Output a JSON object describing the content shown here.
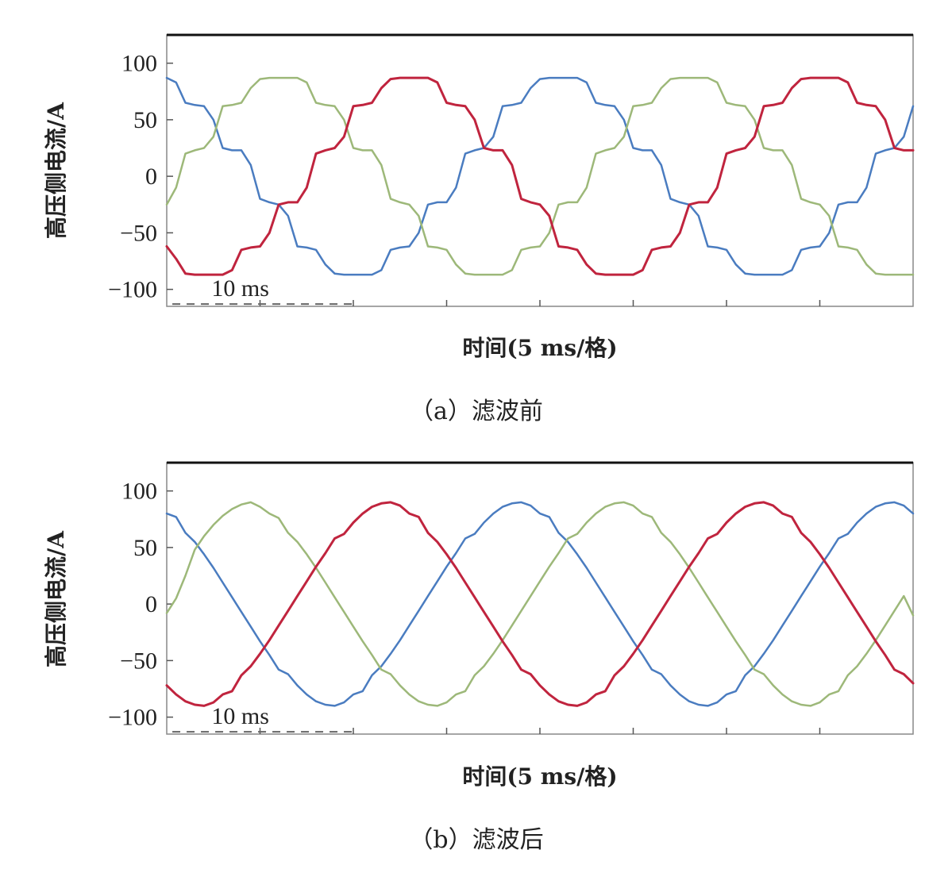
{
  "chart_data": [
    {
      "type": "line",
      "title": "",
      "caption": "（a）滤波前",
      "xlabel": "时间(5 ms/格)",
      "ylabel": "高压侧电流/A",
      "ylim": [
        -115,
        125
      ],
      "yticks": [
        100,
        50,
        0,
        -50,
        -100
      ],
      "yticklabels": [
        "100",
        "50",
        "0",
        "−50",
        "−100"
      ],
      "xlim": [
        0,
        40
      ],
      "xtick_step_ms": 5,
      "scale_bar_label": "10 ms",
      "grid": false,
      "series": [
        {
          "color": "#4a7cc0",
          "x": [
            0,
            0.5,
            1,
            1.5,
            2,
            2.5,
            3,
            3.5,
            4,
            4.5,
            5,
            5.5,
            6,
            6.5,
            7,
            7.5,
            8,
            8.5,
            9,
            9.5,
            10,
            10.5,
            11,
            11.5,
            12,
            12.5,
            13,
            13.5,
            14,
            14.5,
            15,
            15.5,
            16,
            16.5,
            17,
            17.5,
            18,
            18.5,
            19,
            19.5,
            20,
            20.5,
            21,
            21.5,
            22,
            22.5,
            23,
            23.5,
            24,
            24.5,
            25,
            25.5,
            26,
            26.5,
            27,
            27.5,
            28,
            28.5,
            29,
            29.5,
            30,
            30.5,
            31,
            31.5,
            32,
            32.5,
            33,
            33.5,
            34,
            34.5,
            35,
            35.5,
            36,
            36.5,
            37,
            37.5,
            38,
            38.5,
            39,
            39.5,
            40
          ],
          "y": [
            87,
            83,
            65,
            63,
            62,
            50,
            25,
            23,
            23,
            10,
            -20,
            -23,
            -25,
            -35,
            -62,
            -63,
            -65,
            -78,
            -86,
            -87,
            -87,
            -87,
            -87,
            -83,
            -65,
            -63,
            -62,
            -50,
            -25,
            -23,
            -23,
            -10,
            20,
            23,
            25,
            35,
            62,
            63,
            65,
            78,
            86,
            87,
            87,
            87,
            87,
            83,
            65,
            63,
            62,
            50,
            25,
            23,
            23,
            10,
            -20,
            -23,
            -25,
            -35,
            -62,
            -63,
            -65,
            -78,
            -86,
            -87,
            -87,
            -87,
            -87,
            -83,
            -65,
            -63,
            -62,
            -50,
            -25,
            -23,
            -23,
            -10,
            20,
            23,
            25,
            35,
            62
          ]
        },
        {
          "color": "#9db879",
          "x": [
            0,
            0.5,
            1,
            1.5,
            2,
            2.5,
            3,
            3.5,
            4,
            4.5,
            5,
            5.5,
            6,
            6.5,
            7,
            7.5,
            8,
            8.5,
            9,
            9.5,
            10,
            10.5,
            11,
            11.5,
            12,
            12.5,
            13,
            13.5,
            14,
            14.5,
            15,
            15.5,
            16,
            16.5,
            17,
            17.5,
            18,
            18.5,
            19,
            19.5,
            20,
            20.5,
            21,
            21.5,
            22,
            22.5,
            23,
            23.5,
            24,
            24.5,
            25,
            25.5,
            26,
            26.5,
            27,
            27.5,
            28,
            28.5,
            29,
            29.5,
            30,
            30.5,
            31,
            31.5,
            32,
            32.5,
            33,
            33.5,
            34,
            34.5,
            35,
            35.5,
            36,
            36.5,
            37,
            37.5,
            38,
            38.5,
            39,
            39.5,
            40
          ],
          "y": [
            -25,
            -10,
            20,
            23,
            25,
            35,
            62,
            63,
            65,
            78,
            86,
            87,
            87,
            87,
            87,
            83,
            65,
            63,
            62,
            50,
            25,
            23,
            23,
            10,
            -20,
            -23,
            -25,
            -35,
            -62,
            -63,
            -65,
            -78,
            -86,
            -87,
            -87,
            -87,
            -87,
            -83,
            -65,
            -63,
            -62,
            -50,
            -25,
            -23,
            -23,
            -10,
            20,
            23,
            25,
            35,
            62,
            63,
            65,
            78,
            86,
            87,
            87,
            87,
            87,
            83,
            65,
            63,
            62,
            50,
            25,
            23,
            23,
            10,
            -20,
            -23,
            -25,
            -35,
            -62,
            -63,
            -65,
            -78,
            -86,
            -87,
            -87,
            -87,
            -87
          ]
        },
        {
          "color": "#c0243e",
          "x": [
            0,
            0.5,
            1,
            1.5,
            2,
            2.5,
            3,
            3.5,
            4,
            4.5,
            5,
            5.5,
            6,
            6.5,
            7,
            7.5,
            8,
            8.5,
            9,
            9.5,
            10,
            10.5,
            11,
            11.5,
            12,
            12.5,
            13,
            13.5,
            14,
            14.5,
            15,
            15.5,
            16,
            16.5,
            17,
            17.5,
            18,
            18.5,
            19,
            19.5,
            20,
            20.5,
            21,
            21.5,
            22,
            22.5,
            23,
            23.5,
            24,
            24.5,
            25,
            25.5,
            26,
            26.5,
            27,
            27.5,
            28,
            28.5,
            29,
            29.5,
            30,
            30.5,
            31,
            31.5,
            32,
            32.5,
            33,
            33.5,
            34,
            34.5,
            35,
            35.5,
            36,
            36.5,
            37,
            37.5,
            38,
            38.5,
            39,
            39.5,
            40
          ],
          "y": [
            -62,
            -73,
            -86,
            -87,
            -87,
            -87,
            -87,
            -83,
            -65,
            -63,
            -62,
            -50,
            -25,
            -23,
            -23,
            -10,
            20,
            23,
            25,
            35,
            62,
            63,
            65,
            78,
            86,
            87,
            87,
            87,
            87,
            83,
            65,
            63,
            62,
            50,
            25,
            23,
            23,
            10,
            -20,
            -23,
            -25,
            -35,
            -62,
            -63,
            -65,
            -78,
            -86,
            -87,
            -87,
            -87,
            -87,
            -83,
            -65,
            -63,
            -62,
            -50,
            -25,
            -23,
            -23,
            -10,
            20,
            23,
            25,
            35,
            62,
            63,
            65,
            78,
            86,
            87,
            87,
            87,
            87,
            83,
            65,
            63,
            62,
            50,
            25,
            23,
            23
          ]
        }
      ]
    },
    {
      "type": "line",
      "title": "",
      "caption": "（b）滤波后",
      "xlabel": "时间(5 ms/格)",
      "ylabel": "高压侧电流/A",
      "ylim": [
        -115,
        125
      ],
      "yticks": [
        100,
        50,
        0,
        -50,
        -100
      ],
      "yticklabels": [
        "100",
        "50",
        "0",
        "−50",
        "−100"
      ],
      "xlim": [
        0,
        40
      ],
      "xtick_step_ms": 5,
      "scale_bar_label": "10 ms",
      "grid": false,
      "series": [
        {
          "color": "#4a7cc0",
          "x": [
            0,
            0.5,
            1,
            1.5,
            2,
            2.5,
            3,
            3.5,
            4,
            4.5,
            5,
            5.5,
            6,
            6.5,
            7,
            7.5,
            8,
            8.5,
            9,
            9.5,
            10,
            10.5,
            11,
            11.5,
            12,
            12.5,
            13,
            13.5,
            14,
            14.5,
            15,
            15.5,
            16,
            16.5,
            17,
            17.5,
            18,
            18.5,
            19,
            19.5,
            20,
            20.5,
            21,
            21.5,
            22,
            22.5,
            23,
            23.5,
            24,
            24.5,
            25,
            25.5,
            26,
            26.5,
            27,
            27.5,
            28,
            28.5,
            29,
            29.5,
            30,
            30.5,
            31,
            31.5,
            32,
            32.5,
            33,
            33.5,
            34,
            34.5,
            35,
            35.5,
            36,
            36.5,
            37,
            37.5,
            38,
            38.5,
            39,
            39.5,
            40
          ],
          "y": [
            80,
            77,
            63,
            55,
            44,
            32,
            19,
            6,
            -7,
            -20,
            -33,
            -45,
            -58,
            -62,
            -72,
            -80,
            -86,
            -89,
            -90,
            -87,
            -80,
            -77,
            -63,
            -55,
            -44,
            -32,
            -19,
            -6,
            7,
            20,
            33,
            45,
            58,
            62,
            72,
            80,
            86,
            89,
            90,
            87,
            80,
            77,
            63,
            55,
            44,
            32,
            19,
            6,
            -7,
            -20,
            -33,
            -45,
            -58,
            -62,
            -72,
            -80,
            -86,
            -89,
            -90,
            -87,
            -80,
            -77,
            -63,
            -55,
            -44,
            -32,
            -19,
            -6,
            7,
            20,
            33,
            45,
            58,
            62,
            72,
            80,
            86,
            89,
            90,
            87,
            80
          ]
        },
        {
          "color": "#9db879",
          "x": [
            0,
            0.5,
            1,
            1.5,
            2,
            2.5,
            3,
            3.5,
            4,
            4.5,
            5,
            5.5,
            6,
            6.5,
            7,
            7.5,
            8,
            8.5,
            9,
            9.5,
            10,
            10.5,
            11,
            11.5,
            12,
            12.5,
            13,
            13.5,
            14,
            14.5,
            15,
            15.5,
            16,
            16.5,
            17,
            17.5,
            18,
            18.5,
            19,
            19.5,
            20,
            20.5,
            21,
            21.5,
            22,
            22.5,
            23,
            23.5,
            24,
            24.5,
            25,
            25.5,
            26,
            26.5,
            27,
            27.5,
            28,
            28.5,
            29,
            29.5,
            30,
            30.5,
            31,
            31.5,
            32,
            32.5,
            33,
            33.5,
            34,
            34.5,
            35,
            35.5,
            36,
            36.5,
            37,
            37.5,
            38,
            38.5,
            39,
            39.5,
            40
          ],
          "y": [
            -8,
            5,
            25,
            48,
            60,
            70,
            78,
            84,
            88,
            90,
            86,
            80,
            76,
            63,
            55,
            44,
            32,
            19,
            6,
            -7,
            -20,
            -33,
            -45,
            -58,
            -62,
            -72,
            -80,
            -86,
            -89,
            -90,
            -87,
            -80,
            -77,
            -63,
            -55,
            -44,
            -32,
            -19,
            -6,
            7,
            20,
            33,
            45,
            58,
            62,
            72,
            80,
            86,
            89,
            90,
            87,
            80,
            77,
            63,
            55,
            44,
            32,
            19,
            6,
            -7,
            -20,
            -33,
            -45,
            -58,
            -62,
            -72,
            -80,
            -86,
            -89,
            -90,
            -87,
            -80,
            -77,
            -63,
            -55,
            -44,
            -32,
            -19,
            -6,
            7,
            -10
          ]
        },
        {
          "color": "#c0243e",
          "x": [
            0,
            0.5,
            1,
            1.5,
            2,
            2.5,
            3,
            3.5,
            4,
            4.5,
            5,
            5.5,
            6,
            6.5,
            7,
            7.5,
            8,
            8.5,
            9,
            9.5,
            10,
            10.5,
            11,
            11.5,
            12,
            12.5,
            13,
            13.5,
            14,
            14.5,
            15,
            15.5,
            16,
            16.5,
            17,
            17.5,
            18,
            18.5,
            19,
            19.5,
            20,
            20.5,
            21,
            21.5,
            22,
            22.5,
            23,
            23.5,
            24,
            24.5,
            25,
            25.5,
            26,
            26.5,
            27,
            27.5,
            28,
            28.5,
            29,
            29.5,
            30,
            30.5,
            31,
            31.5,
            32,
            32.5,
            33,
            33.5,
            34,
            34.5,
            35,
            35.5,
            36,
            36.5,
            37,
            37.5,
            38,
            38.5,
            39,
            39.5,
            40
          ],
          "y": [
            -72,
            -80,
            -86,
            -89,
            -90,
            -87,
            -80,
            -77,
            -63,
            -55,
            -44,
            -32,
            -19,
            -6,
            7,
            20,
            33,
            45,
            58,
            62,
            72,
            80,
            86,
            89,
            90,
            87,
            80,
            77,
            63,
            55,
            44,
            32,
            19,
            6,
            -7,
            -20,
            -33,
            -45,
            -58,
            -62,
            -72,
            -80,
            -86,
            -89,
            -90,
            -87,
            -80,
            -77,
            -63,
            -55,
            -44,
            -32,
            -19,
            -6,
            7,
            20,
            33,
            45,
            58,
            62,
            72,
            80,
            86,
            89,
            90,
            87,
            80,
            77,
            63,
            55,
            44,
            32,
            19,
            6,
            -7,
            -20,
            -33,
            -45,
            -58,
            -62,
            -70
          ]
        }
      ]
    }
  ]
}
